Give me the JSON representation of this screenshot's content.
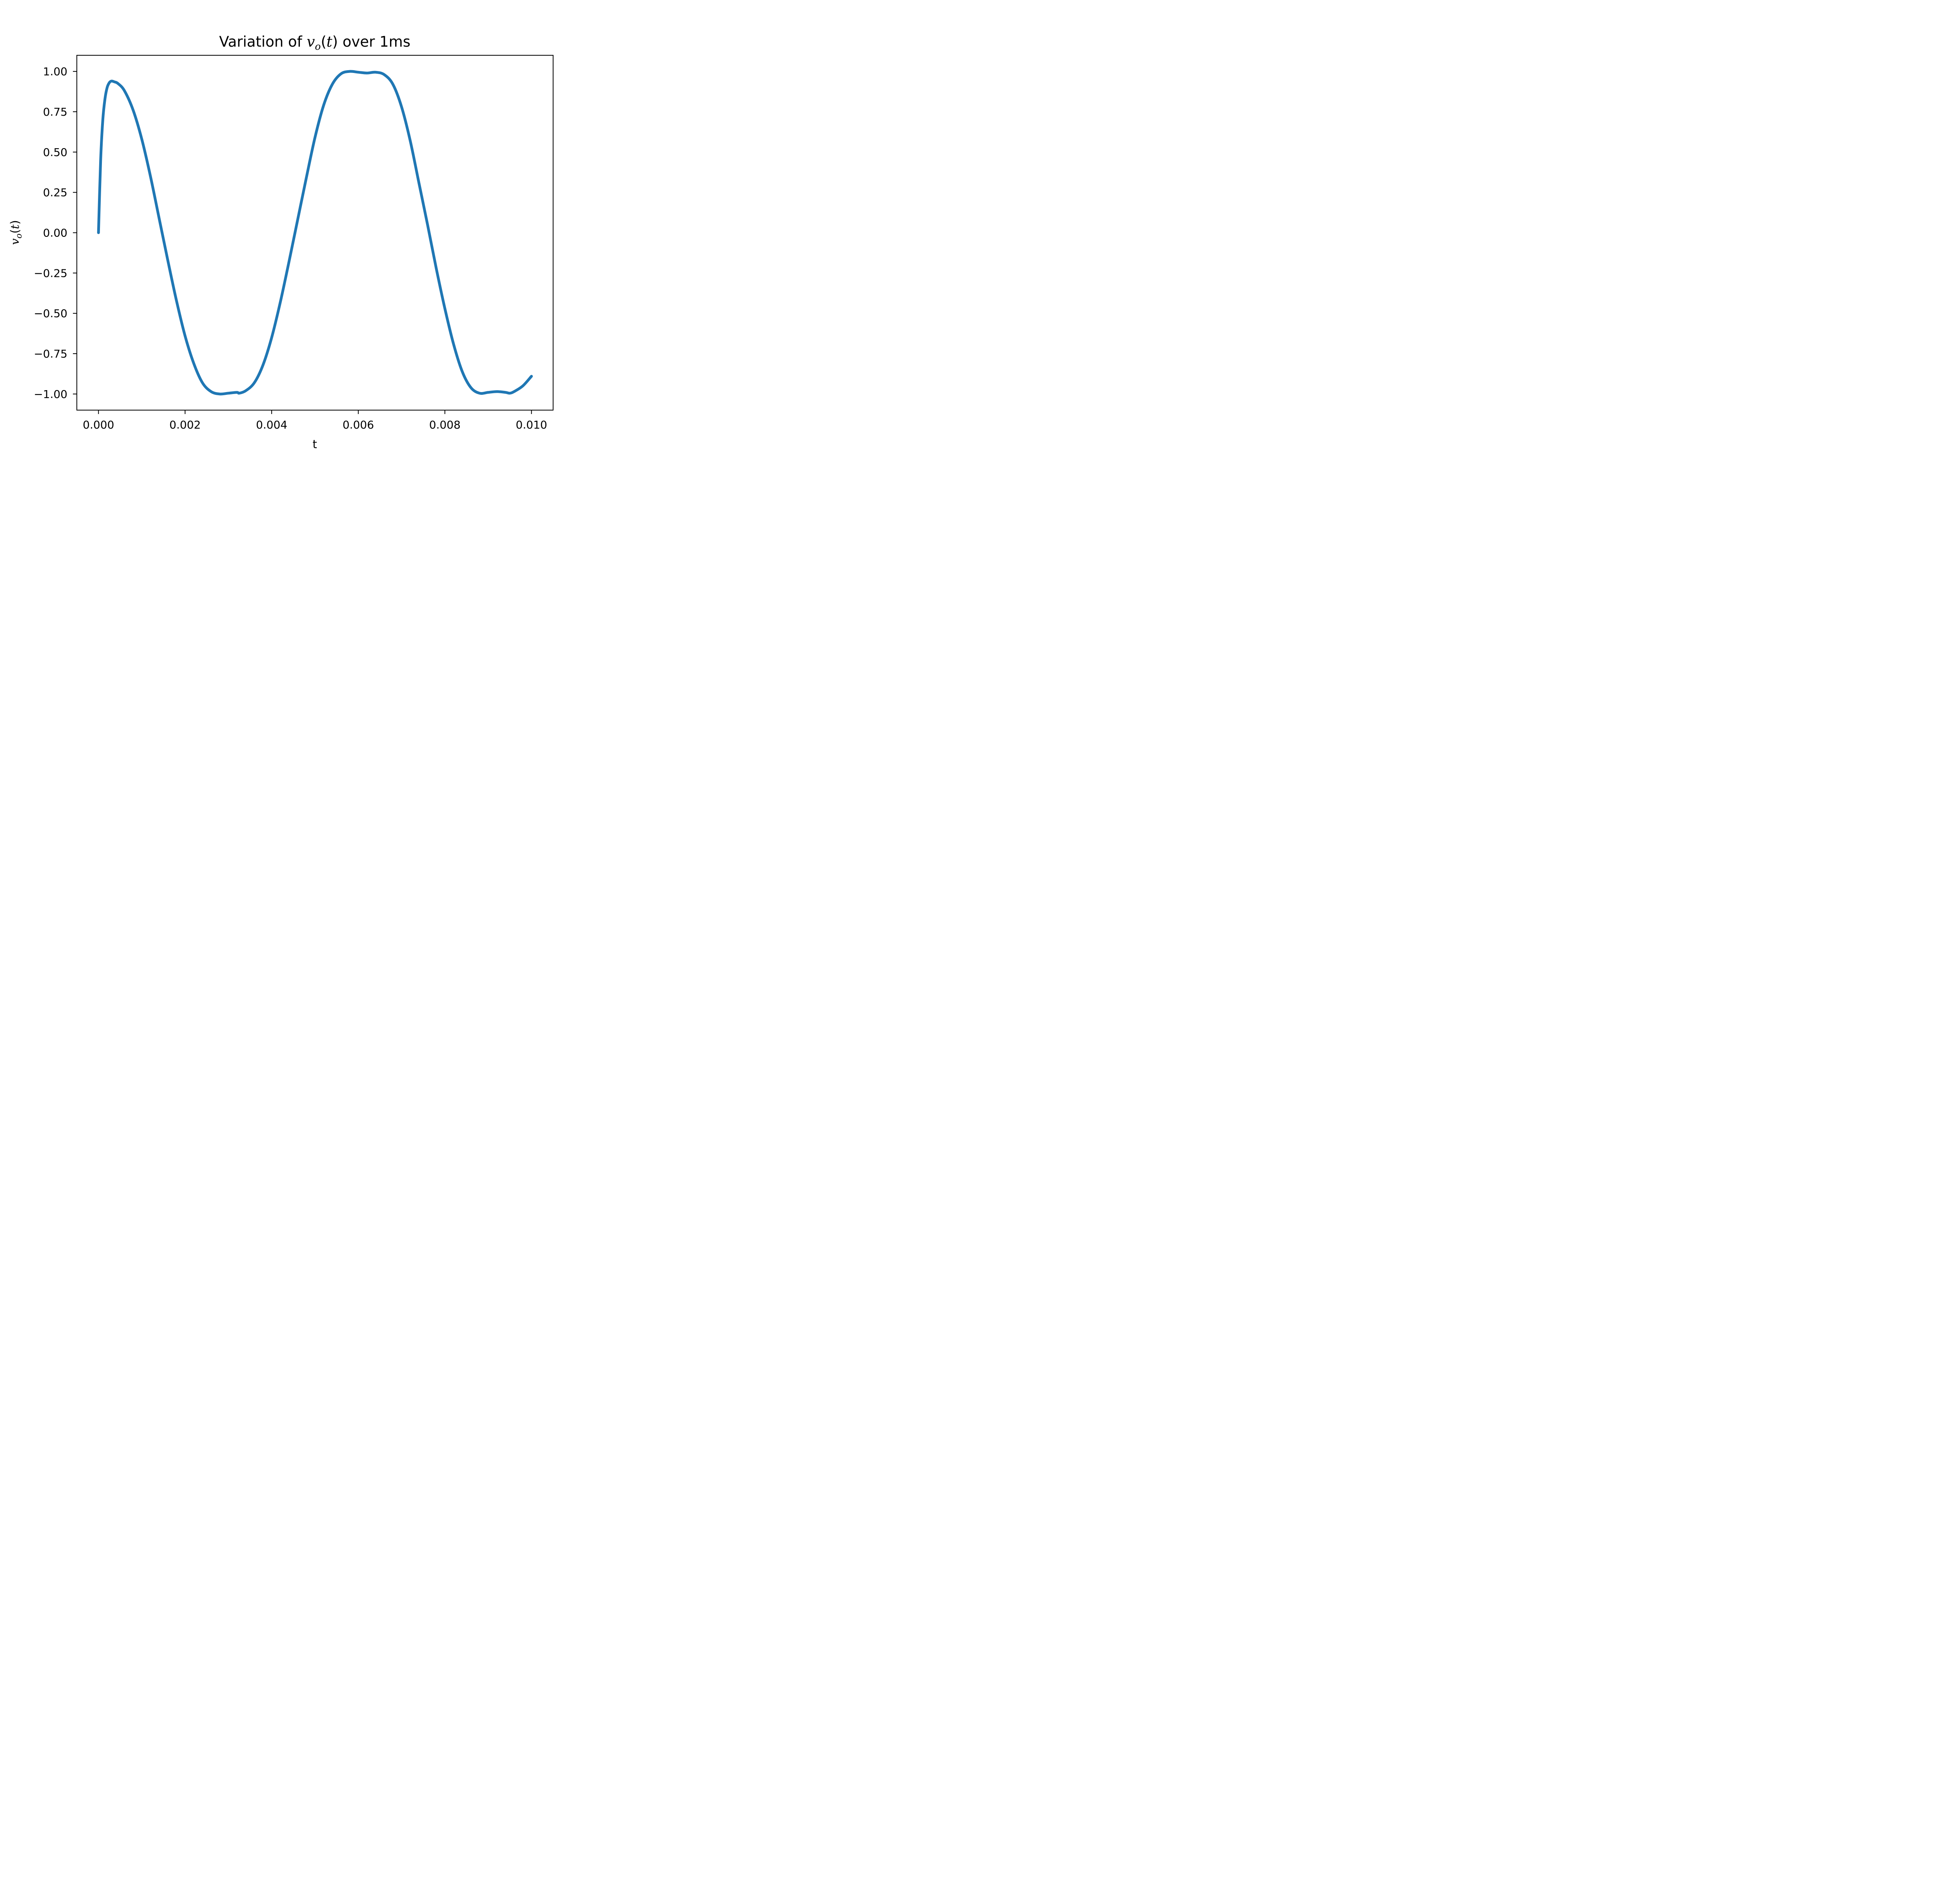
{
  "chart_data": {
    "type": "line",
    "title": {
      "prefix": "Variation of ",
      "var_main": "v",
      "var_sub": "o",
      "open_paren": "(",
      "var_arg": "t",
      "close_paren": ")",
      "suffix": " over 1ms"
    },
    "xlabel": "t",
    "ylabel": {
      "var_main": "v",
      "var_sub": "o",
      "open_paren": "(",
      "var_arg": "t",
      "close_paren": ")"
    },
    "xlim": [
      -0.0005,
      0.0105
    ],
    "ylim": [
      -1.1,
      1.1
    ],
    "x_ticks": [
      0.0,
      0.002,
      0.004,
      0.006,
      0.008,
      0.01
    ],
    "x_tick_labels": [
      "0.000",
      "0.002",
      "0.004",
      "0.006",
      "0.008",
      "0.010"
    ],
    "y_ticks": [
      1.0,
      0.75,
      0.5,
      0.25,
      0.0,
      -0.25,
      -0.5,
      -0.75,
      -1.0
    ],
    "y_tick_labels": [
      "1.00",
      "0.75",
      "0.50",
      "0.25",
      "0.00",
      "−0.25",
      "−0.50",
      "−0.75",
      "−1.00"
    ],
    "grid": false,
    "series": [
      {
        "color": "#1f77b4",
        "x": [
          0.0,
          5e-05,
          0.0001,
          0.00015,
          0.0002,
          0.00025,
          0.0003,
          0.00037,
          0.00045,
          0.0006,
          0.0008,
          0.001,
          0.0012,
          0.0014,
          0.0016,
          0.0018,
          0.002,
          0.0022,
          0.0024,
          0.0026,
          0.0028,
          0.003,
          0.0032,
          0.00325,
          0.0034,
          0.0036,
          0.0038,
          0.004,
          0.0042,
          0.0044,
          0.0046,
          0.0048,
          0.005,
          0.0052,
          0.0054,
          0.0056,
          0.0058,
          0.006,
          0.0062,
          0.0064,
          0.0066,
          0.0068,
          0.007,
          0.0072,
          0.0074,
          0.0076,
          0.0078,
          0.008,
          0.0082,
          0.0084,
          0.0086,
          0.0088,
          0.009,
          0.0092,
          0.0094,
          0.0095,
          0.0096,
          0.0098,
          0.01
        ],
        "y": [
          0.0,
          0.45,
          0.7,
          0.83,
          0.9,
          0.93,
          0.94,
          0.935,
          0.925,
          0.88,
          0.76,
          0.58,
          0.35,
          0.09,
          -0.17,
          -0.42,
          -0.64,
          -0.81,
          -0.93,
          -0.985,
          -1.0,
          -0.995,
          -0.99,
          -0.995,
          -0.98,
          -0.93,
          -0.82,
          -0.65,
          -0.43,
          -0.18,
          0.08,
          0.34,
          0.59,
          0.79,
          0.92,
          0.985,
          1.0,
          0.995,
          0.99,
          0.995,
          0.98,
          0.92,
          0.78,
          0.57,
          0.31,
          0.05,
          -0.22,
          -0.47,
          -0.69,
          -0.86,
          -0.96,
          -0.995,
          -0.99,
          -0.985,
          -0.99,
          -0.995,
          -0.985,
          -0.95,
          -0.89
        ]
      }
    ]
  }
}
